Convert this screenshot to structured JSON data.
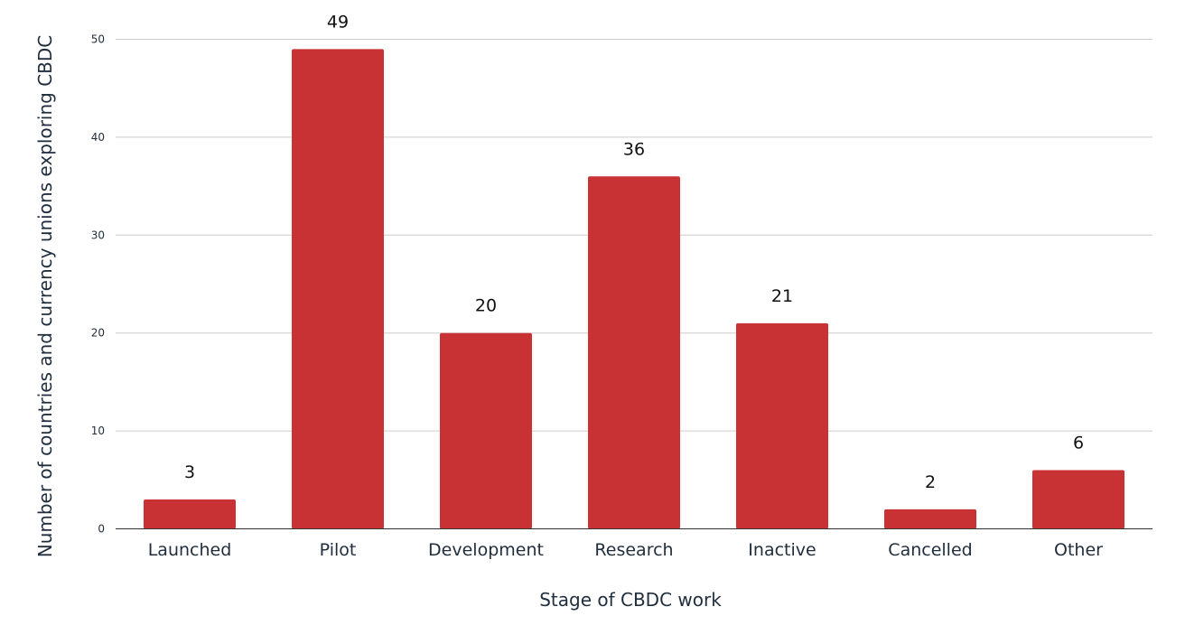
{
  "chart_data": {
    "type": "bar",
    "categories": [
      "Launched",
      "Pilot",
      "Development",
      "Research",
      "Inactive",
      "Cancelled",
      "Other"
    ],
    "values": [
      3,
      49,
      20,
      36,
      21,
      2,
      6
    ],
    "xlabel": "Stage of CBDC work",
    "ylabel": "Number of countries and currency unions exploring CBDC",
    "ylim": [
      0,
      50
    ],
    "yticks": [
      0,
      10,
      20,
      30,
      40,
      50
    ],
    "grid": true,
    "bar_color": "#c93235",
    "data_labels": true
  }
}
